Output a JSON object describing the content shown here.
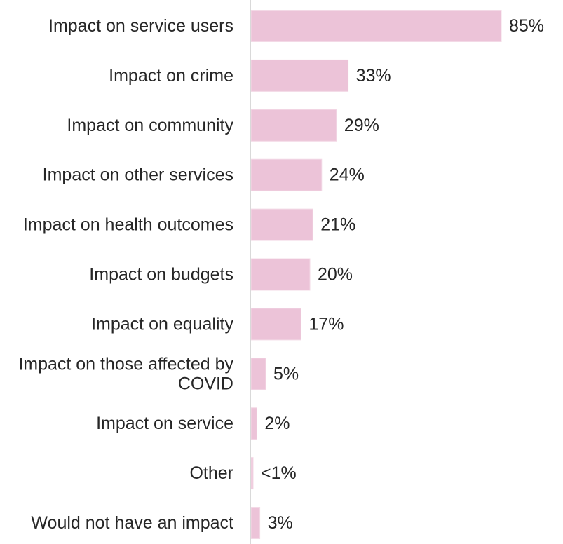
{
  "chart_data": {
    "type": "bar",
    "orientation": "horizontal",
    "categories": [
      [
        "Impact on service users"
      ],
      [
        "Impact on crime"
      ],
      [
        "Impact on community"
      ],
      [
        "Impact on other services"
      ],
      [
        "Impact on health outcomes"
      ],
      [
        "Impact on budgets"
      ],
      [
        "Impact on equality"
      ],
      [
        "Impact on those affected by",
        "COVID"
      ],
      [
        "Impact on service"
      ],
      [
        "Other"
      ],
      [
        "Would not have an impact"
      ]
    ],
    "values": [
      85,
      33,
      29,
      24,
      21,
      20,
      17,
      5,
      2,
      0.3,
      3
    ],
    "value_labels": [
      "85%",
      "33%",
      "29%",
      "24%",
      "21%",
      "20%",
      "17%",
      "5%",
      "2%",
      "<1%",
      "3%"
    ],
    "unit": "%",
    "bar_color": "#ecc3d8",
    "bar_edge_color": "#f3d9e6",
    "axis_color": "#d9d9d9",
    "text_color": "#262626",
    "legend": "none",
    "grid": false
  }
}
